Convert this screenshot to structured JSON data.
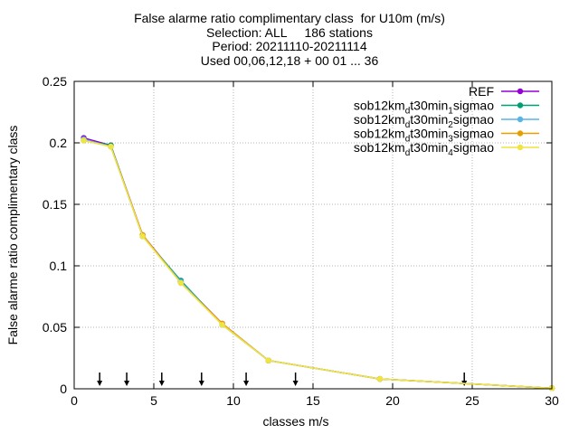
{
  "chart_data": {
    "type": "line",
    "title_lines": [
      "False alarme ratio complimentary class  for U10m (m/s)",
      "Selection: ALL     186 stations",
      "Period: 20211110-20211114",
      "Used 00,06,12,18 + 00 01 ... 36"
    ],
    "xlabel": "classes m/s",
    "ylabel": "False alarme ratio complimentary class",
    "xlim": [
      0,
      30
    ],
    "ylim": [
      0,
      0.25
    ],
    "xticks": [
      0,
      5,
      10,
      15,
      20,
      25,
      30
    ],
    "xtick_labels": [
      "0",
      "5",
      "10",
      "15",
      "20",
      "25",
      "30"
    ],
    "yticks": [
      0,
      0.05,
      0.1,
      0.15,
      0.2,
      0.25
    ],
    "ytick_labels": [
      "0",
      "0.05",
      "0.1",
      "0.15",
      "0.2",
      "0.25"
    ],
    "grid": true,
    "legend_position": "top-right",
    "arrows_x": [
      1.6,
      3.3,
      5.5,
      8.0,
      10.8,
      13.9,
      24.5
    ],
    "series": [
      {
        "name": "REF",
        "name_parts": [
          [
            "REF",
            ""
          ]
        ],
        "color": "#9400d3",
        "x": [
          0.6,
          2.3,
          4.3,
          6.7,
          9.3,
          12.2,
          19.2,
          30
        ],
        "y": [
          0.204,
          0.198,
          0.125,
          0.087,
          0.053,
          0.023,
          0.008,
          0.0005
        ]
      },
      {
        "name": "sob12km_dt30min_1sigmao",
        "name_parts": [
          [
            "sob12km",
            ""
          ],
          [
            "d",
            "sub"
          ],
          [
            "t30min",
            ""
          ],
          [
            "1",
            "sub"
          ],
          [
            "sigmao",
            ""
          ]
        ],
        "color": "#009e73",
        "x": [
          0.6,
          2.3,
          4.3,
          6.7,
          9.3,
          12.2,
          19.2,
          30
        ],
        "y": [
          0.202,
          0.198,
          0.124,
          0.088,
          0.052,
          0.023,
          0.008,
          0.0005
        ]
      },
      {
        "name": "sob12km_dt30min_2sigmao",
        "name_parts": [
          [
            "sob12km",
            ""
          ],
          [
            "d",
            "sub"
          ],
          [
            "t30min",
            ""
          ],
          [
            "2",
            "sub"
          ],
          [
            "sigmao",
            ""
          ]
        ],
        "color": "#56b4e9",
        "x": [
          0.6,
          2.3,
          4.3,
          6.7,
          9.3,
          12.2,
          19.2,
          30
        ],
        "y": [
          0.203,
          0.197,
          0.124,
          0.087,
          0.052,
          0.023,
          0.008,
          0.0005
        ]
      },
      {
        "name": "sob12km_dt30min_3sigmao",
        "name_parts": [
          [
            "sob12km",
            ""
          ],
          [
            "d",
            "sub"
          ],
          [
            "t30min",
            ""
          ],
          [
            "3",
            "sub"
          ],
          [
            "sigmao",
            ""
          ]
        ],
        "color": "#e69f00",
        "x": [
          0.6,
          2.3,
          4.3,
          6.7,
          9.3,
          12.2,
          19.2,
          30
        ],
        "y": [
          0.202,
          0.197,
          0.125,
          0.086,
          0.053,
          0.023,
          0.008,
          0.0005
        ]
      },
      {
        "name": "sob12km_dt30min_4sigmao",
        "name_parts": [
          [
            "sob12km",
            ""
          ],
          [
            "d",
            "sub"
          ],
          [
            "t30min",
            ""
          ],
          [
            "4",
            "sub"
          ],
          [
            "sigmao",
            ""
          ]
        ],
        "color": "#f0e442",
        "x": [
          0.6,
          2.3,
          4.3,
          6.7,
          9.3,
          12.2,
          19.2,
          30
        ],
        "y": [
          0.202,
          0.197,
          0.124,
          0.086,
          0.052,
          0.023,
          0.008,
          0.0005
        ]
      }
    ]
  }
}
